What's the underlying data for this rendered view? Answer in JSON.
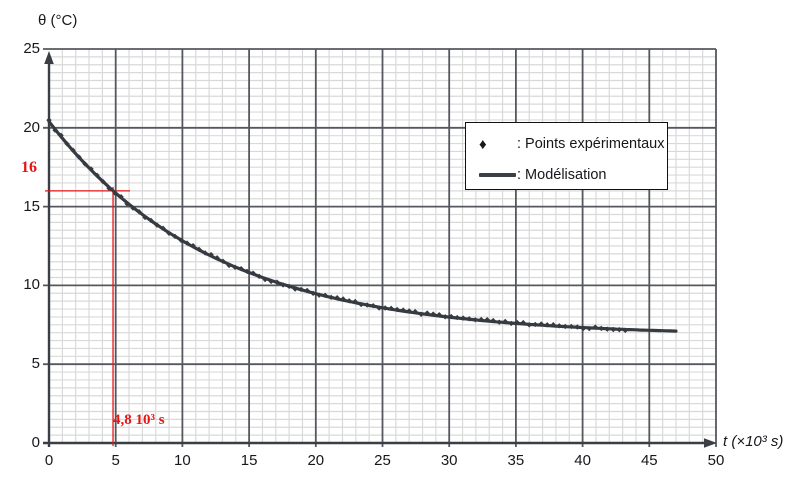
{
  "figure": {
    "background": "#ffffff"
  },
  "axis": {
    "y_title": "θ (°C)",
    "x_title": "t (×10³ s)"
  },
  "legend": {
    "diamond_symbol": "♦",
    "experimental_label": ": Points expérimentaux",
    "model_label": ": Modélisation"
  },
  "annotations": {
    "theta_label": "16",
    "time_label": "4,8 10³ s",
    "theta_value": 16,
    "time_value": 4.8,
    "accent_color": "#e81416"
  },
  "chart_data": {
    "type": "line",
    "title": "",
    "xlabel": "t (×10³ s)",
    "ylabel": "θ (°C)",
    "xlim": [
      0,
      50
    ],
    "ylim": [
      0,
      25
    ],
    "x_ticks": [
      0,
      5,
      10,
      15,
      20,
      25,
      30,
      35,
      40,
      45,
      50
    ],
    "y_ticks": [
      0,
      5,
      10,
      15,
      20,
      25
    ],
    "grid": {
      "minor_x_step": 1,
      "minor_y_step": 0.5,
      "major_step": 5
    },
    "legend_position": "upper right inside",
    "series": [
      {
        "name": "Points expérimentaux",
        "kind": "scatter",
        "marker": "diamond",
        "color": "#363b42",
        "t_start": 0,
        "t_end": 43.2,
        "t_step": 0.45
      },
      {
        "name": "Modélisation",
        "kind": "line",
        "color": "#363b42",
        "t_start": 0,
        "t_end": 47,
        "t_step": 0.25
      }
    ],
    "model": {
      "formula": "θ(t) = 6.8 + 13.6·exp(−t/12.3)",
      "theta_inf": 6.8,
      "amplitude": 13.6,
      "tau": 12.3
    },
    "sample_points": [
      [
        0,
        20.4
      ],
      [
        4.8,
        16.0
      ],
      [
        5,
        15.9
      ],
      [
        10,
        12.8
      ],
      [
        15,
        10.9
      ],
      [
        20,
        9.5
      ],
      [
        25,
        8.6
      ],
      [
        30,
        8.0
      ],
      [
        35,
        7.6
      ],
      [
        40,
        7.3
      ],
      [
        43,
        7.2
      ],
      [
        47,
        7.1
      ]
    ],
    "crosshair": {
      "t": 4.8,
      "theta": 16
    },
    "colors": {
      "curve": "#363b42",
      "minor_grid": "#d9d9d9",
      "major_grid": "#54585e",
      "axis": "#3a3f45",
      "annotation": "#e81416",
      "text": "#141414"
    }
  }
}
